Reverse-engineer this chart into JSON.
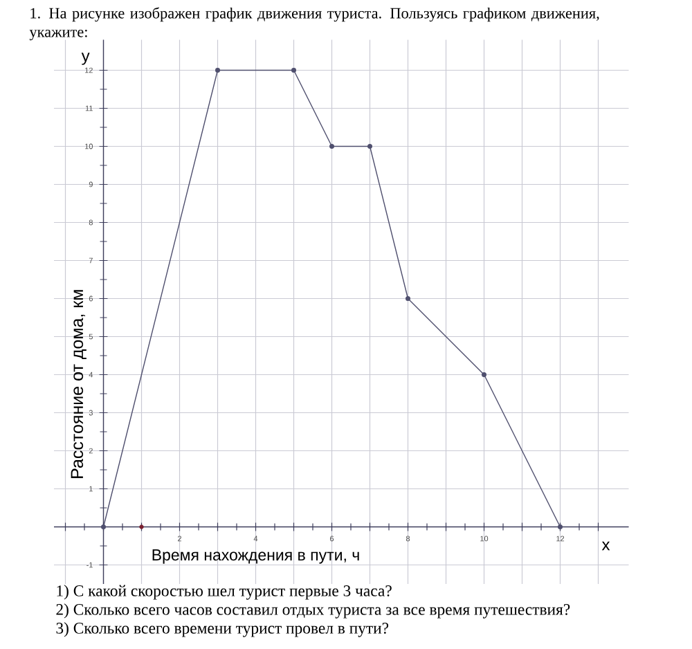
{
  "chart_data": {
    "type": "line",
    "title": "1. На рисунке изображен график движения туриста. Пользуясь графиком движения, укажите:",
    "xlabel": "Время нахождения в пути, ч",
    "ylabel": "Расстояние от дома, км",
    "annotations": [
      "y",
      "x",
      "1) С какой скоростью шел турист первые 3 часа?",
      "2) Сколько всего часов составил отдых туриста за все время путешествия?",
      "3) Сколько всего времени турист провел в пути?"
    ],
    "series": [
      {
        "color": "#4f4f6e",
        "x": [
          0,
          3,
          5,
          6,
          7,
          8,
          10,
          12
        ],
        "values": [
          0,
          12,
          12,
          10,
          10,
          6,
          4,
          0
        ]
      },
      {
        "type": "scatter",
        "color": "#7a2030",
        "x": [
          1
        ],
        "values": [
          0
        ]
      }
    ],
    "xlim": [
      -1.3,
      13.8
    ],
    "ylim": [
      -1.5,
      12.8
    ],
    "xticks": [
      {
        "value": -1,
        "label": null
      },
      {
        "value": 0,
        "label": null
      },
      {
        "value": 1,
        "label": null
      },
      2,
      {
        "value": 3,
        "label": null
      },
      4,
      {
        "value": 5,
        "label": null
      },
      6,
      {
        "value": 7,
        "label": null
      },
      8,
      {
        "value": 9,
        "label": null
      },
      10,
      {
        "value": 11,
        "label": null
      },
      12,
      {
        "value": 13,
        "label": null
      }
    ],
    "yticks": [
      -1,
      {
        "value": 0,
        "label": null
      },
      1,
      2,
      3,
      4,
      5,
      6,
      7,
      8,
      9,
      10,
      11,
      12
    ],
    "grid": true,
    "marker": "circle",
    "line_style": "solid"
  }
}
